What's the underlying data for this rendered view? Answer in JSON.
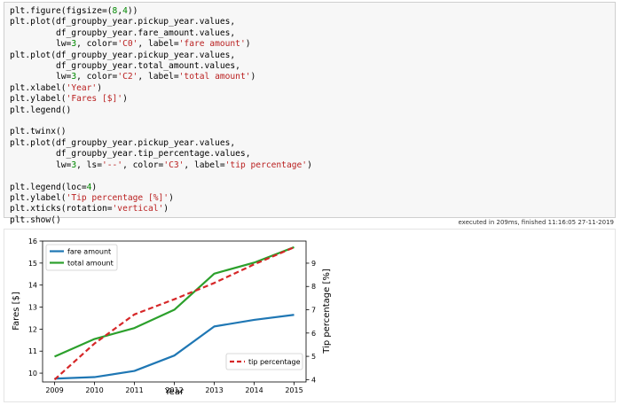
{
  "code_lines": [
    [
      {
        "t": "plt.figure(figsize=("
      },
      {
        "t": "8",
        "c": "n"
      },
      {
        "t": ","
      },
      {
        "t": "4",
        "c": "n"
      },
      {
        "t": "))"
      }
    ],
    [
      {
        "t": "plt.plot(df_groupby_year.pickup_year.values,"
      }
    ],
    [
      {
        "t": "         df_groupby_year.fare_amount.values,"
      }
    ],
    [
      {
        "t": "         lw="
      },
      {
        "t": "3",
        "c": "n"
      },
      {
        "t": ", color="
      },
      {
        "t": "'C0'",
        "c": "s"
      },
      {
        "t": ", label="
      },
      {
        "t": "'fare amount'",
        "c": "s"
      },
      {
        "t": ")"
      }
    ],
    [
      {
        "t": "plt.plot(df_groupby_year.pickup_year.values,"
      }
    ],
    [
      {
        "t": "         df_groupby_year.total_amount.values,"
      }
    ],
    [
      {
        "t": "         lw="
      },
      {
        "t": "3",
        "c": "n"
      },
      {
        "t": ", color="
      },
      {
        "t": "'C2'",
        "c": "s"
      },
      {
        "t": ", label="
      },
      {
        "t": "'total amount'",
        "c": "s"
      },
      {
        "t": ")"
      }
    ],
    [
      {
        "t": "plt.xlabel("
      },
      {
        "t": "'Year'",
        "c": "s"
      },
      {
        "t": ")"
      }
    ],
    [
      {
        "t": "plt.ylabel("
      },
      {
        "t": "'Fares [$]'",
        "c": "s"
      },
      {
        "t": ")"
      }
    ],
    [
      {
        "t": "plt.legend()"
      }
    ],
    [
      {
        "t": ""
      }
    ],
    [
      {
        "t": "plt.twinx()"
      }
    ],
    [
      {
        "t": "plt.plot(df_groupby_year.pickup_year.values,"
      }
    ],
    [
      {
        "t": "         df_groupby_year.tip_percentage.values,"
      }
    ],
    [
      {
        "t": "         lw="
      },
      {
        "t": "3",
        "c": "n"
      },
      {
        "t": ", ls="
      },
      {
        "t": "'--'",
        "c": "s"
      },
      {
        "t": ", color="
      },
      {
        "t": "'C3'",
        "c": "s"
      },
      {
        "t": ", label="
      },
      {
        "t": "'tip percentage'",
        "c": "s"
      },
      {
        "t": ")"
      }
    ],
    [
      {
        "t": ""
      }
    ],
    [
      {
        "t": "plt.legend(loc="
      },
      {
        "t": "4",
        "c": "n"
      },
      {
        "t": ")"
      }
    ],
    [
      {
        "t": "plt.ylabel("
      },
      {
        "t": "'Tip percentage [%]'",
        "c": "s"
      },
      {
        "t": ")"
      }
    ],
    [
      {
        "t": "plt.xticks(rotation="
      },
      {
        "t": "'vertical'",
        "c": "s"
      },
      {
        "t": ")"
      }
    ],
    [
      {
        "t": "plt.show()"
      }
    ]
  ],
  "status": {
    "text": "executed in 209ms, finished 11:16:05 27-11-2019"
  },
  "chart_data": {
    "type": "line",
    "x": [
      2009,
      2010,
      2011,
      2012,
      2013,
      2014,
      2015
    ],
    "xlabel": "Year",
    "ylabel": "Fares [$]",
    "y2label": "Tip percentage [%]",
    "xlim": [
      2008.7,
      2015.3
    ],
    "ylim": [
      9.6,
      16
    ],
    "y2lim": [
      3.9,
      9.95
    ],
    "xticks": [
      "2009",
      "2010",
      "2011",
      "2012",
      "2013",
      "2014",
      "2015"
    ],
    "yticks": [
      "10",
      "11",
      "12",
      "13",
      "14",
      "15",
      "16"
    ],
    "y2ticks": [
      "4",
      "5",
      "6",
      "7",
      "8",
      "9"
    ],
    "series": [
      {
        "name": "fare amount",
        "axis": "left",
        "color": "#1f77b4",
        "dash": "solid",
        "values": [
          9.75,
          9.82,
          10.1,
          10.8,
          12.12,
          12.42,
          12.65
        ]
      },
      {
        "name": "total amount",
        "axis": "left",
        "color": "#2ca02c",
        "dash": "solid",
        "values": [
          10.75,
          11.55,
          12.05,
          12.88,
          14.52,
          15.02,
          15.72
        ]
      },
      {
        "name": "tip percentage",
        "axis": "right",
        "color": "#d62728",
        "dash": "dashed",
        "values": [
          4.0,
          5.55,
          6.8,
          7.45,
          8.15,
          8.95,
          9.68
        ]
      }
    ],
    "legend_left": "upper left",
    "legend_right": "lower right",
    "grid": false
  }
}
